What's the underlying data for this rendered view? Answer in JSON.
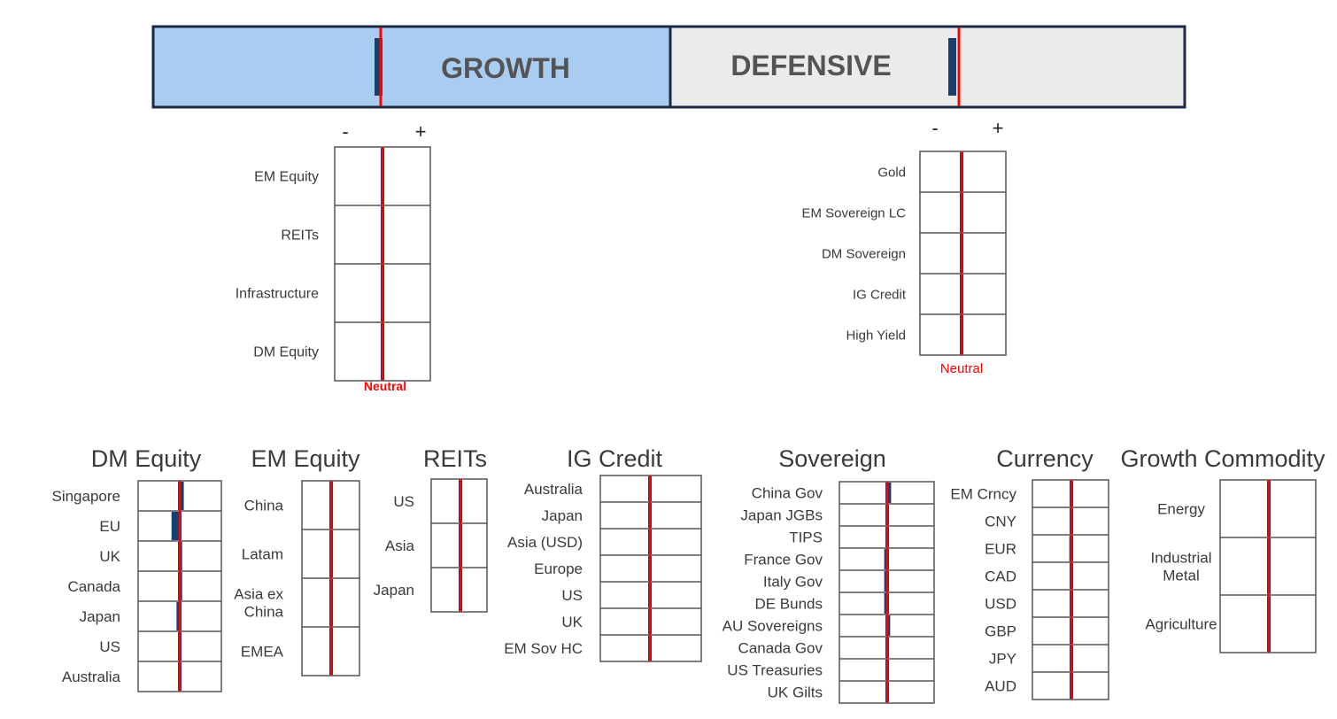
{
  "colors": {
    "growth_fill": "#a9cdf0",
    "defensive_fill": "#ebebeb",
    "frame": "#1a2a44",
    "neutral_line": "#ff0000",
    "bar": "#173f6e",
    "grid": "#555555",
    "label": "#3a3a3a"
  },
  "banner": {
    "growth_label": "GROWTH",
    "defensive_label": "DEFENSIVE",
    "growth_position": 0,
    "defensive_position": -0.01
  },
  "scale": {
    "minus": "-",
    "plus": "+"
  },
  "neutral_label": "Neutral",
  "chart_data": [
    {
      "id": "growth-assets",
      "type": "bar",
      "title": "",
      "categories": [
        "EM Equity",
        "REITs",
        "Infrastructure",
        "DM Equity"
      ],
      "values": [
        -0.01,
        0.01,
        0.01,
        -0.01
      ],
      "xlim": [
        -1,
        1
      ],
      "neutral": 0
    },
    {
      "id": "defensive-assets",
      "type": "bar",
      "title": "",
      "categories": [
        "Gold",
        "EM Sovereign LC",
        "DM Sovereign",
        "IG Credit",
        "High Yield"
      ],
      "values": [
        -0.005,
        0,
        0.01,
        0.005,
        -0.01
      ],
      "xlim": [
        -1,
        1
      ],
      "neutral": 0
    },
    {
      "id": "dm-equity",
      "type": "bar",
      "title": "DM Equity",
      "categories": [
        "Singapore",
        "EU",
        "UK",
        "Canada",
        "Japan",
        "US",
        "Australia"
      ],
      "values": [
        0.035,
        -0.06,
        0.025,
        0.025,
        -0.03,
        -0.01,
        0.01
      ],
      "xlim": [
        -1,
        1
      ],
      "neutral": 0
    },
    {
      "id": "em-equity",
      "type": "bar",
      "title": "EM Equity",
      "categories": [
        "China",
        "Latam",
        "Asia ex China",
        "EMEA"
      ],
      "values": [
        -0.015,
        0.015,
        0,
        0
      ],
      "xlim": [
        -1,
        1
      ],
      "neutral": 0
    },
    {
      "id": "reits",
      "type": "bar",
      "title": "REITs",
      "categories": [
        "US",
        "Asia",
        "Japan"
      ],
      "values": [
        0,
        0.005,
        -0.015
      ],
      "xlim": [
        -1,
        1
      ],
      "neutral": 0
    },
    {
      "id": "ig-credit",
      "type": "bar",
      "title": "IG Credit",
      "categories": [
        "Australia",
        "Japan",
        "Asia (USD)",
        "Europe",
        "US",
        "UK",
        "EM Sov HC"
      ],
      "values": [
        0.015,
        -0.005,
        -0.005,
        -0.005,
        0.005,
        -0.005,
        -0.005
      ],
      "xlim": [
        -1,
        1
      ],
      "neutral": 0
    },
    {
      "id": "sovereign",
      "type": "bar",
      "title": "Sovereign",
      "categories": [
        "China Gov",
        "Japan JGBs",
        "TIPS",
        "France Gov",
        "Italy Gov",
        "DE Bunds",
        "AU Sovereigns",
        "Canada Gov",
        "US Treasuries",
        "UK Gilts"
      ],
      "values": [
        0.03,
        -0.005,
        -0.005,
        -0.025,
        -0.025,
        -0.025,
        0.025,
        0,
        0.015,
        0.015
      ],
      "xlim": [
        -1,
        1
      ],
      "neutral": 0
    },
    {
      "id": "currency",
      "type": "bar",
      "title": "Currency",
      "categories": [
        "EM Crncy",
        "CNY",
        "EUR",
        "CAD",
        "USD",
        "GBP",
        "JPY",
        "AUD"
      ],
      "values": [
        0,
        -0.005,
        -0.025,
        0,
        0,
        0,
        0,
        0
      ],
      "xlim": [
        -1,
        1
      ],
      "neutral": 0
    },
    {
      "id": "growth-commodity",
      "type": "bar",
      "title": "Growth Commodity",
      "categories": [
        "Energy",
        "Industrial Metal",
        "Agriculture"
      ],
      "values": [
        0,
        0.005,
        -0.01
      ],
      "xlim": [
        -1,
        1
      ],
      "neutral": 0
    }
  ]
}
